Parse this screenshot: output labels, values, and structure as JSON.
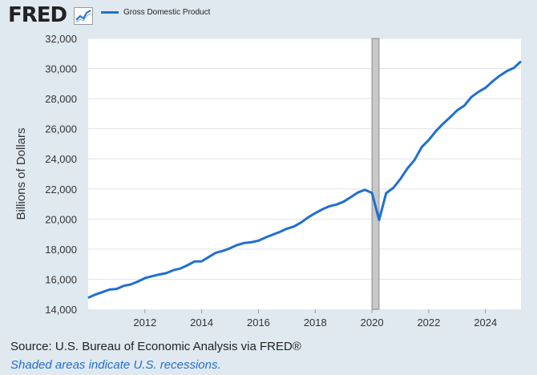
{
  "header": {
    "logo_text": "FRED",
    "logo_icon": "trend-line-icon",
    "legend_label": "Gross Domestic Product",
    "series_color": "#1f6fd2"
  },
  "footer": {
    "source": "Source: U.S. Bureau of Economic Analysis via FRED®",
    "recession_note": "Shaded areas indicate U.S. recessions."
  },
  "chart_data": {
    "type": "line",
    "ylabel": "Billions of Dollars",
    "xlabel": "",
    "title": "",
    "xlim": [
      2010.0,
      2025.25
    ],
    "ylim": [
      14000,
      32000
    ],
    "xticks": [
      2012,
      2014,
      2016,
      2018,
      2020,
      2022,
      2024
    ],
    "xtick_labels": [
      "2012",
      "2014",
      "2016",
      "2018",
      "2020",
      "2022",
      "2024"
    ],
    "yticks": [
      14000,
      16000,
      18000,
      20000,
      22000,
      24000,
      26000,
      28000,
      30000,
      32000
    ],
    "ytick_labels": [
      "14,000",
      "16,000",
      "18,000",
      "20,000",
      "22,000",
      "24,000",
      "26,000",
      "28,000",
      "30,000",
      "32,000"
    ],
    "grid": "horizontal",
    "recessions": [
      [
        2020.0,
        2020.25
      ]
    ],
    "series": [
      {
        "name": "Gross Domestic Product",
        "x": [
          2010.0,
          2010.25,
          2010.5,
          2010.75,
          2011.0,
          2011.25,
          2011.5,
          2011.75,
          2012.0,
          2012.25,
          2012.5,
          2012.75,
          2013.0,
          2013.25,
          2013.5,
          2013.75,
          2014.0,
          2014.25,
          2014.5,
          2014.75,
          2015.0,
          2015.25,
          2015.5,
          2015.75,
          2016.0,
          2016.25,
          2016.5,
          2016.75,
          2017.0,
          2017.25,
          2017.5,
          2017.75,
          2018.0,
          2018.25,
          2018.5,
          2018.75,
          2019.0,
          2019.25,
          2019.5,
          2019.75,
          2020.0,
          2020.25,
          2020.5,
          2020.75,
          2021.0,
          2021.25,
          2021.5,
          2021.75,
          2022.0,
          2022.25,
          2022.5,
          2022.75,
          2023.0,
          2023.25,
          2023.5,
          2023.75,
          2024.0,
          2024.25,
          2024.5,
          2024.75,
          2025.0,
          2025.25
        ],
        "values": [
          14760,
          14980,
          15140,
          15310,
          15350,
          15560,
          15650,
          15840,
          16070,
          16200,
          16310,
          16400,
          16600,
          16710,
          16930,
          17180,
          17190,
          17480,
          17760,
          17880,
          18060,
          18270,
          18410,
          18460,
          18560,
          18770,
          18960,
          19140,
          19360,
          19500,
          19770,
          20110,
          20390,
          20640,
          20850,
          20960,
          21150,
          21450,
          21760,
          21940,
          21730,
          19940,
          21720,
          22070,
          22660,
          23370,
          23920,
          24780,
          25250,
          25840,
          26320,
          26760,
          27220,
          27530,
          28100,
          28450,
          28720,
          29150,
          29520,
          29830,
          30040,
          30480
        ]
      }
    ]
  }
}
